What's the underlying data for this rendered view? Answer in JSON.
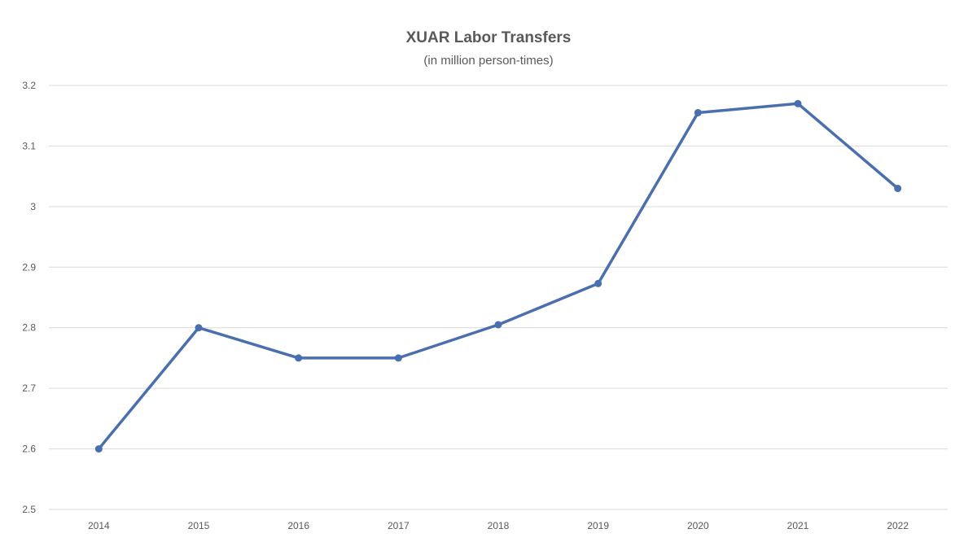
{
  "chart_data": {
    "type": "line",
    "title": "XUAR Labor Transfers",
    "subtitle": "(in million person-times)",
    "xlabel": "",
    "ylabel": "",
    "categories": [
      "2014",
      "2015",
      "2016",
      "2017",
      "2018",
      "2019",
      "2020",
      "2021",
      "2022"
    ],
    "series": [
      {
        "values": [
          2.6,
          2.8,
          2.75,
          2.75,
          2.805,
          2.873,
          3.155,
          3.17,
          3.03
        ],
        "color": "#4a6fae"
      }
    ],
    "ylim": [
      2.5,
      3.2
    ],
    "yticks": [
      "2.5",
      "2.6",
      "2.7",
      "2.8",
      "2.9",
      "3",
      "3.1",
      "3.2"
    ],
    "grid": true,
    "legend": "none",
    "marker": "circle"
  }
}
